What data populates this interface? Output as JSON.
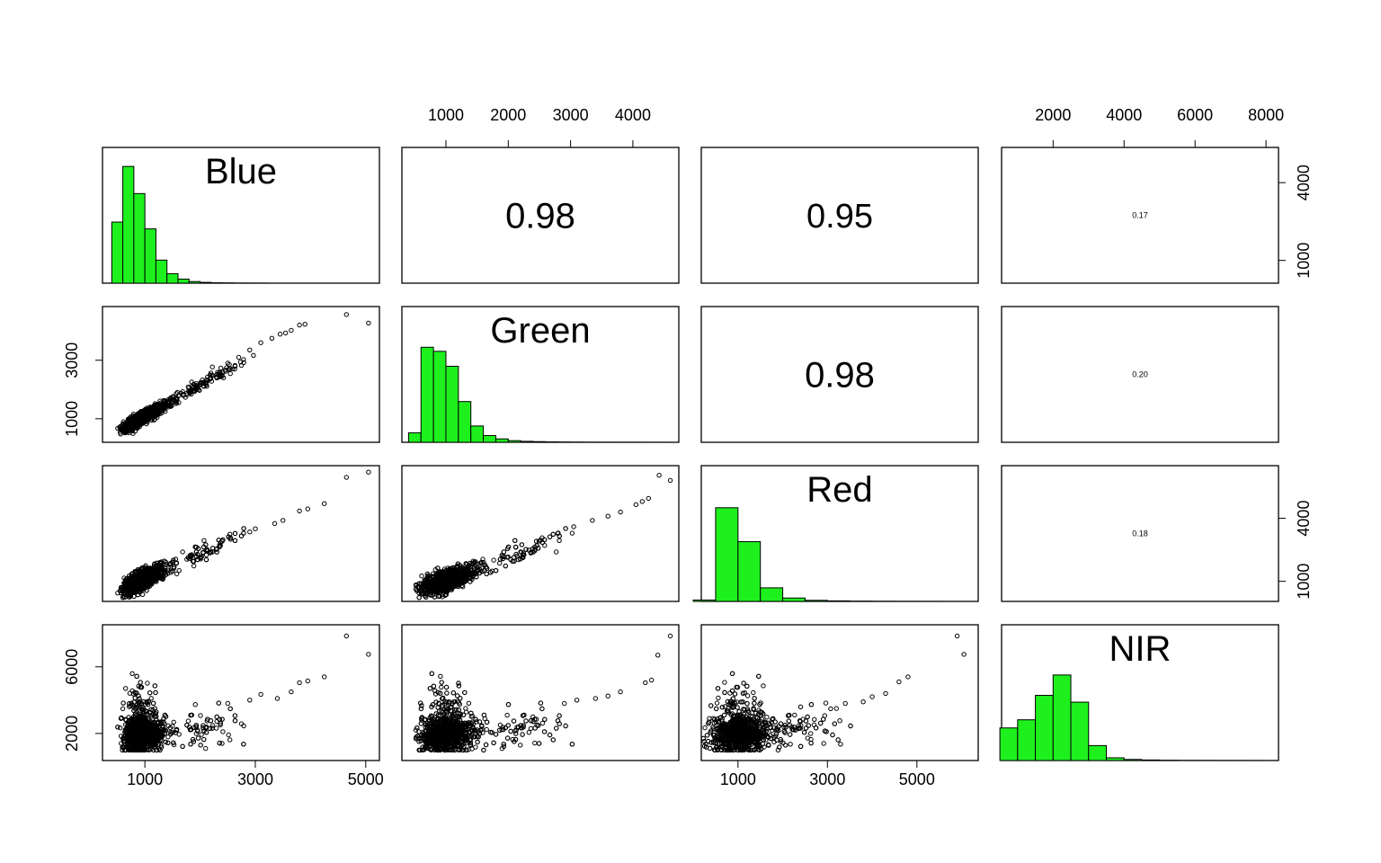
{
  "chart_data": {
    "type": "pairs",
    "variables": [
      "Blue",
      "Green",
      "Red",
      "NIR"
    ],
    "grid": false,
    "hist_color": "#1EF01E",
    "point_color": "#000000",
    "ranges": {
      "Blue": [
        330,
        5150
      ],
      "Green": [
        380,
        4650
      ],
      "Red": [
        300,
        6250
      ],
      "NIR": [
        700,
        8200
      ]
    },
    "bottom_axis_ticks": {
      "Blue": [
        "1000",
        "3000",
        "5000"
      ],
      "Red": [
        "1000",
        "3000",
        "5000"
      ]
    },
    "top_axis_ticks": {
      "Green": [
        "1000",
        "2000",
        "3000",
        "4000"
      ],
      "NIR": [
        "2000",
        "4000",
        "6000",
        "8000"
      ]
    },
    "left_axis_ticks": {
      "Green": [
        "1000",
        "3000"
      ],
      "NIR": [
        "2000",
        "6000"
      ]
    },
    "right_axis_ticks": {
      "Blue": [
        "1000",
        "4000"
      ],
      "Red": [
        "1000",
        "4000"
      ]
    },
    "correlations": [
      {
        "row": "Blue",
        "col": "Green",
        "label": "0.98",
        "size": 40
      },
      {
        "row": "Blue",
        "col": "Red",
        "label": "0.95",
        "size": 38
      },
      {
        "row": "Blue",
        "col": "NIR",
        "label": "0.17",
        "size": 9
      },
      {
        "row": "Green",
        "col": "Red",
        "label": "0.98",
        "size": 40
      },
      {
        "row": "Green",
        "col": "NIR",
        "label": "0.20",
        "size": 9
      },
      {
        "row": "Red",
        "col": "NIR",
        "label": "0.18",
        "size": 9
      }
    ],
    "histograms": {
      "Blue": {
        "breaks": [
          400,
          600,
          800,
          1000,
          1200,
          1400,
          1600,
          1800,
          2000,
          2200,
          2400,
          2600,
          2800,
          3000,
          3200
        ],
        "heights": [
          0.45,
          0.86,
          0.66,
          0.4,
          0.17,
          0.07,
          0.03,
          0.012,
          0.006,
          0.003,
          0.002,
          0.001,
          0.0008,
          0.0005
        ]
      },
      "Green": {
        "breaks": [
          400,
          600,
          800,
          1000,
          1200,
          1400,
          1600,
          1800,
          2000,
          2200,
          2400,
          2600,
          2800,
          3000,
          3200,
          3400,
          3600,
          3800,
          4000,
          4200,
          4400,
          4600
        ],
        "heights": [
          0.07,
          0.7,
          0.67,
          0.56,
          0.3,
          0.12,
          0.05,
          0.025,
          0.012,
          0.007,
          0.005,
          0.003,
          0.002,
          0.0015,
          0.001,
          0.0008,
          0.0006,
          0.0005,
          0.0004,
          0.0003,
          0.0002
        ]
      },
      "Red": {
        "breaks": [
          0,
          500,
          1000,
          1500,
          2000,
          2500,
          3000,
          3500,
          4000,
          4500,
          5000,
          5500,
          6000
        ],
        "heights": [
          0.01,
          0.69,
          0.44,
          0.1,
          0.025,
          0.008,
          0.004,
          0.002,
          0.001,
          0.0006,
          0.0004,
          0.0002
        ]
      },
      "NIR": {
        "breaks": [
          500,
          1000,
          1500,
          2000,
          2500,
          3000,
          3500,
          4000,
          4500,
          5000,
          5500,
          6000,
          6500,
          7000,
          7500,
          8000
        ],
        "heights": [
          0.24,
          0.3,
          0.48,
          0.63,
          0.43,
          0.11,
          0.02,
          0.008,
          0.004,
          0.002,
          0.001,
          0.0008,
          0.0005,
          0.0004,
          0.0003
        ]
      }
    },
    "scatter": {
      "Green_vs_Blue": [
        [
          4650,
          4560
        ],
        [
          5050,
          4270
        ],
        [
          3900,
          4230
        ],
        [
          3800,
          4200
        ],
        [
          3650,
          4020
        ],
        [
          3550,
          3930
        ],
        [
          3450,
          3890
        ],
        [
          3300,
          3750
        ],
        [
          3100,
          3600
        ],
        [
          2900,
          3350
        ],
        [
          2700,
          3100
        ],
        [
          2500,
          2900
        ]
      ],
      "Red_vs_Blue": [
        [
          5050,
          6200
        ],
        [
          4650,
          5950
        ],
        [
          4250,
          4700
        ],
        [
          3950,
          4450
        ],
        [
          3800,
          4350
        ],
        [
          3500,
          3900
        ],
        [
          3350,
          3750
        ],
        [
          3000,
          3500
        ],
        [
          2900,
          3350
        ],
        [
          2550,
          3000
        ]
      ],
      "NIR_vs_Blue": [
        [
          4650,
          7850
        ],
        [
          5050,
          6750
        ],
        [
          4250,
          5400
        ],
        [
          3950,
          5150
        ],
        [
          3800,
          5050
        ],
        [
          3650,
          4500
        ],
        [
          3400,
          4100
        ],
        [
          3100,
          4350
        ],
        [
          2100,
          1100
        ],
        [
          2900,
          4000
        ],
        [
          2500,
          3800
        ]
      ],
      "Red_vs_Green": [
        [
          4420,
          6050
        ],
        [
          4600,
          5800
        ],
        [
          4250,
          4950
        ],
        [
          4150,
          4800
        ],
        [
          4050,
          4650
        ],
        [
          3800,
          4300
        ],
        [
          3600,
          4100
        ],
        [
          3350,
          3900
        ],
        [
          3050,
          3600
        ],
        [
          2800,
          3300
        ]
      ],
      "NIR_vs_Green": [
        [
          4600,
          7850
        ],
        [
          4400,
          6700
        ],
        [
          4300,
          5200
        ],
        [
          4200,
          5050
        ],
        [
          3800,
          4500
        ],
        [
          3600,
          4250
        ],
        [
          3400,
          4100
        ],
        [
          3100,
          4000
        ],
        [
          1900,
          1100
        ],
        [
          2900,
          3800
        ]
      ],
      "NIR_vs_Red": [
        [
          5900,
          7850
        ],
        [
          6050,
          6750
        ],
        [
          4800,
          5400
        ],
        [
          4600,
          5100
        ],
        [
          4300,
          4400
        ],
        [
          4000,
          4200
        ],
        [
          3800,
          3900
        ],
        [
          3400,
          3800
        ],
        [
          2400,
          3600
        ],
        [
          3200,
          3500
        ]
      ]
    }
  }
}
